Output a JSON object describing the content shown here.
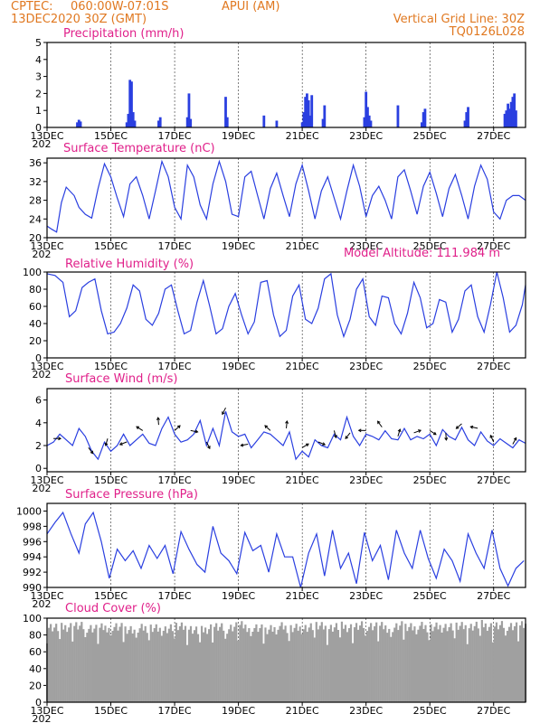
{
  "header": {
    "source": "CPTEC:",
    "location": "060:00W-07:01S",
    "station": "APUI (AM)",
    "run_date": "13DEC2020 30Z (GMT)",
    "grid_note": "Vertical Grid Line: 30Z",
    "model_code": "TQ0126L028"
  },
  "x_axis": {
    "labels": [
      "13DEC",
      "15DEC",
      "17DEC",
      "19DEC",
      "21DEC",
      "23DEC",
      "25DEC",
      "27DEC"
    ],
    "year_stub": "202",
    "days_span": 15
  },
  "colors": {
    "series": "#2a3fe0",
    "cloud": "#a0a0a0",
    "title": "#e0208a",
    "header": "#e07820"
  },
  "chart_data": [
    {
      "id": "precipitation",
      "type": "bar",
      "title": "Precipitation (mm/h)",
      "ylim": [
        0,
        5
      ],
      "yticks": [
        0,
        1,
        2,
        3,
        4,
        5
      ],
      "bars": [
        [
          0.95,
          0.3
        ],
        [
          1.0,
          0.45
        ],
        [
          1.05,
          0.35
        ],
        [
          2.5,
          0.3
        ],
        [
          2.55,
          0.8
        ],
        [
          2.6,
          2.8
        ],
        [
          2.65,
          2.7
        ],
        [
          2.7,
          0.9
        ],
        [
          2.75,
          0.4
        ],
        [
          3.5,
          0.4
        ],
        [
          3.55,
          0.6
        ],
        [
          4.4,
          0.6
        ],
        [
          4.45,
          2.0
        ],
        [
          4.5,
          0.5
        ],
        [
          5.6,
          1.8
        ],
        [
          5.65,
          0.6
        ],
        [
          6.8,
          0.7
        ],
        [
          7.2,
          0.4
        ],
        [
          8.0,
          0.3
        ],
        [
          8.05,
          0.9
        ],
        [
          8.1,
          1.8
        ],
        [
          8.15,
          2.0
        ],
        [
          8.2,
          1.6
        ],
        [
          8.25,
          0.7
        ],
        [
          8.3,
          1.9
        ],
        [
          8.65,
          0.5
        ],
        [
          8.7,
          1.3
        ],
        [
          9.95,
          0.6
        ],
        [
          10.0,
          2.1
        ],
        [
          10.05,
          1.2
        ],
        [
          10.1,
          0.7
        ],
        [
          10.15,
          0.4
        ],
        [
          11.0,
          1.3
        ],
        [
          11.75,
          0.3
        ],
        [
          11.8,
          0.9
        ],
        [
          11.85,
          1.1
        ],
        [
          13.1,
          0.4
        ],
        [
          13.15,
          0.9
        ],
        [
          13.2,
          1.2
        ],
        [
          14.35,
          0.8
        ],
        [
          14.4,
          1.0
        ],
        [
          14.45,
          1.4
        ],
        [
          14.5,
          1.1
        ],
        [
          14.55,
          1.5
        ],
        [
          14.6,
          1.8
        ],
        [
          14.65,
          2.0
        ],
        [
          14.7,
          1.0
        ]
      ]
    },
    {
      "id": "temperature",
      "type": "line",
      "title": "Surface Temperature (nC)",
      "ylim": [
        20,
        37
      ],
      "yticks": [
        20,
        24,
        28,
        32,
        36
      ],
      "x": [
        0,
        0.15,
        0.3,
        0.45,
        0.6,
        0.85,
        1.0,
        1.2,
        1.4,
        1.6,
        1.8,
        2.0,
        2.2,
        2.4,
        2.6,
        2.8,
        3.0,
        3.2,
        3.4,
        3.6,
        3.8,
        4.0,
        4.2,
        4.4,
        4.6,
        4.8,
        5.0,
        5.2,
        5.4,
        5.6,
        5.8,
        6.0,
        6.2,
        6.4,
        6.6,
        6.8,
        7.0,
        7.2,
        7.4,
        7.6,
        7.8,
        8.0,
        8.2,
        8.4,
        8.6,
        8.8,
        9.0,
        9.2,
        9.4,
        9.6,
        9.8,
        10.0,
        10.2,
        10.4,
        10.6,
        10.8,
        11.0,
        11.2,
        11.4,
        11.6,
        11.8,
        12.0,
        12.2,
        12.4,
        12.6,
        12.8,
        13.0,
        13.2,
        13.4,
        13.6,
        13.8,
        14.0,
        14.2,
        14.4,
        14.6,
        14.8,
        15.0
      ],
      "y": [
        22.5,
        21.8,
        21.2,
        27.5,
        30.8,
        29.0,
        26.5,
        25.0,
        24.2,
        30.5,
        35.8,
        33.0,
        28.5,
        24.5,
        31.5,
        33.0,
        29.0,
        24.0,
        30.0,
        36.3,
        33.0,
        26.5,
        24.0,
        35.5,
        33.0,
        27.0,
        24.0,
        31.5,
        36.3,
        32.0,
        25.0,
        24.5,
        33.0,
        34.2,
        29.0,
        24.0,
        30.5,
        33.8,
        29.0,
        24.5,
        31.5,
        35.5,
        30.0,
        24.0,
        30.0,
        33.0,
        28.5,
        24.0,
        30.0,
        35.5,
        31.0,
        24.5,
        29.0,
        31.0,
        28.0,
        24.0,
        33.0,
        34.5,
        30.0,
        25.0,
        31.0,
        34.0,
        29.5,
        24.5,
        30.5,
        33.5,
        29.0,
        24.0,
        31.0,
        35.5,
        32.5,
        25.5,
        24.0,
        28.0,
        29.0,
        29.0,
        28.0
      ]
    },
    {
      "id": "humidity",
      "type": "line",
      "title": "Relative Humidity (%)",
      "ylim": [
        0,
        100
      ],
      "yticks": [
        0,
        20,
        40,
        60,
        80,
        100
      ],
      "x": [
        0,
        0.25,
        0.5,
        0.7,
        0.9,
        1.1,
        1.3,
        1.5,
        1.7,
        1.9,
        2.1,
        2.3,
        2.5,
        2.7,
        2.9,
        3.1,
        3.3,
        3.5,
        3.7,
        3.9,
        4.1,
        4.3,
        4.5,
        4.7,
        4.9,
        5.1,
        5.3,
        5.5,
        5.7,
        5.9,
        6.1,
        6.3,
        6.5,
        6.7,
        6.9,
        7.1,
        7.3,
        7.5,
        7.7,
        7.9,
        8.1,
        8.3,
        8.5,
        8.7,
        8.9,
        9.1,
        9.3,
        9.5,
        9.7,
        9.9,
        10.1,
        10.3,
        10.5,
        10.7,
        10.9,
        11.1,
        11.3,
        11.5,
        11.7,
        11.9,
        12.1,
        12.3,
        12.5,
        12.7,
        12.9,
        13.1,
        13.3,
        13.5,
        13.7,
        13.9,
        14.1,
        14.3,
        14.5,
        14.7,
        14.9,
        15.0
      ],
      "y": [
        98,
        96,
        88,
        48,
        55,
        82,
        88,
        92,
        55,
        28,
        30,
        40,
        58,
        85,
        78,
        45,
        38,
        52,
        80,
        85,
        55,
        28,
        32,
        65,
        90,
        60,
        28,
        34,
        60,
        75,
        50,
        28,
        42,
        88,
        90,
        50,
        25,
        32,
        72,
        85,
        45,
        40,
        58,
        92,
        98,
        50,
        25,
        45,
        80,
        92,
        48,
        38,
        72,
        70,
        40,
        28,
        52,
        88,
        70,
        35,
        40,
        68,
        65,
        30,
        45,
        78,
        85,
        48,
        30,
        62,
        100,
        70,
        30,
        38,
        62,
        85
      ]
    },
    {
      "id": "wind",
      "type": "line",
      "title": "Surface Wind (m/s)",
      "ylim": [
        -0.3,
        7
      ],
      "yticks": [
        0,
        2,
        4,
        6
      ],
      "x": [
        0,
        0.2,
        0.4,
        0.6,
        0.8,
        1.0,
        1.2,
        1.4,
        1.6,
        1.8,
        2.0,
        2.2,
        2.4,
        2.6,
        2.8,
        3.0,
        3.2,
        3.4,
        3.6,
        3.8,
        4.0,
        4.2,
        4.4,
        4.6,
        4.8,
        5.0,
        5.2,
        5.4,
        5.6,
        5.8,
        6.0,
        6.2,
        6.4,
        6.6,
        6.8,
        7.0,
        7.2,
        7.4,
        7.6,
        7.8,
        8.0,
        8.2,
        8.4,
        8.6,
        8.8,
        9.0,
        9.2,
        9.4,
        9.6,
        9.8,
        10.0,
        10.2,
        10.4,
        10.6,
        10.8,
        11.0,
        11.2,
        11.4,
        11.6,
        11.8,
        12.0,
        12.2,
        12.4,
        12.6,
        12.8,
        13.0,
        13.2,
        13.4,
        13.6,
        13.8,
        14.0,
        14.2,
        14.4,
        14.6,
        14.8,
        15.0
      ],
      "y": [
        2.0,
        2.3,
        3.0,
        2.5,
        2.0,
        3.5,
        2.8,
        1.5,
        0.8,
        2.3,
        1.5,
        2.0,
        3.0,
        2.0,
        2.5,
        3.0,
        2.2,
        2.0,
        3.5,
        4.5,
        3.0,
        2.3,
        2.5,
        3.0,
        4.2,
        2.0,
        3.5,
        2.0,
        5.0,
        3.2,
        2.8,
        3.0,
        1.8,
        2.5,
        3.2,
        3.0,
        2.5,
        2.0,
        3.2,
        0.8,
        1.5,
        1.0,
        2.5,
        2.0,
        1.8,
        3.0,
        2.5,
        4.5,
        2.8,
        2.0,
        3.0,
        2.8,
        2.5,
        3.3,
        2.6,
        2.5,
        3.5,
        2.5,
        2.8,
        2.6,
        3.0,
        2.0,
        3.4,
        2.8,
        2.5,
        3.6,
        2.5,
        2.0,
        3.2,
        2.4,
        2.0,
        2.6,
        2.2,
        1.8,
        2.5,
        2.2
      ],
      "arrows_x": [
        0.2,
        1.3,
        1.9,
        2.5,
        3.0,
        3.5,
        4.0,
        4.5,
        5.0,
        5.6,
        6.3,
        7.0,
        7.5,
        8.0,
        8.5,
        9.0,
        9.5,
        10.0,
        10.5,
        11.0,
        11.5,
        12.0,
        12.5,
        13.0,
        13.5,
        14.0,
        14.6
      ]
    },
    {
      "id": "pressure",
      "type": "line",
      "title": "Surface Pressure (hPa)",
      "model_altitude": "Model Altitude: 111.984 m",
      "ylim": [
        990,
        1001
      ],
      "yticks": [
        990,
        992,
        994,
        996,
        998,
        1000
      ],
      "x": [
        0,
        0.25,
        0.5,
        0.75,
        1.0,
        1.2,
        1.45,
        1.7,
        1.95,
        2.2,
        2.45,
        2.7,
        2.95,
        3.2,
        3.45,
        3.7,
        3.95,
        4.2,
        4.45,
        4.7,
        4.95,
        5.2,
        5.45,
        5.7,
        5.95,
        6.2,
        6.45,
        6.7,
        6.95,
        7.2,
        7.45,
        7.7,
        7.95,
        8.2,
        8.45,
        8.7,
        8.95,
        9.2,
        9.45,
        9.7,
        9.95,
        10.2,
        10.45,
        10.7,
        10.95,
        11.2,
        11.45,
        11.7,
        11.95,
        12.2,
        12.45,
        12.7,
        12.95,
        13.2,
        13.45,
        13.7,
        13.95,
        14.2,
        14.45,
        14.7,
        14.95
      ],
      "y": [
        997,
        998.5,
        999.8,
        997,
        994.5,
        998.3,
        999.8,
        996,
        991.2,
        995,
        993.5,
        994.8,
        992.5,
        995.5,
        993.8,
        995.5,
        991.8,
        997.3,
        995,
        993,
        992,
        998,
        994.5,
        993.5,
        991.8,
        997.2,
        994.8,
        995.5,
        992,
        997,
        994,
        994,
        990,
        994.5,
        997,
        991.5,
        997.5,
        992.5,
        994.5,
        990.5,
        997.2,
        993.5,
        995.5,
        991,
        997.5,
        994.5,
        992.5,
        997.5,
        993.8,
        991.2,
        995,
        993.5,
        990.8,
        997,
        994.5,
        992.5,
        997.5,
        992.5,
        990.2,
        992.5,
        993.5
      ]
    },
    {
      "id": "cloud",
      "type": "area",
      "title": "Cloud Cover (%)",
      "ylim": [
        0,
        100
      ],
      "yticks": [
        0,
        20,
        40,
        60,
        80,
        100
      ],
      "x": [
        0,
        0.4,
        0.8,
        1.2,
        1.6,
        2.0,
        2.4,
        2.8,
        3.2,
        3.6,
        4.0,
        4.4,
        4.8,
        5.2,
        5.6,
        6.0,
        6.4,
        6.8,
        7.2,
        7.6,
        8.0,
        8.4,
        8.8,
        9.2,
        9.6,
        10.0,
        10.4,
        10.8,
        11.2,
        11.6,
        12.0,
        12.4,
        12.8,
        13.2,
        13.6,
        14.0,
        14.4,
        14.8,
        15.0
      ],
      "y": [
        96,
        94,
        97,
        95,
        93,
        96,
        94,
        92,
        95,
        93,
        96,
        94,
        90,
        96,
        93,
        97,
        95,
        92,
        96,
        94,
        95,
        97,
        94,
        96,
        95,
        97,
        96,
        94,
        97,
        96,
        95,
        97,
        96,
        95,
        98,
        96,
        97,
        96,
        97
      ]
    }
  ]
}
